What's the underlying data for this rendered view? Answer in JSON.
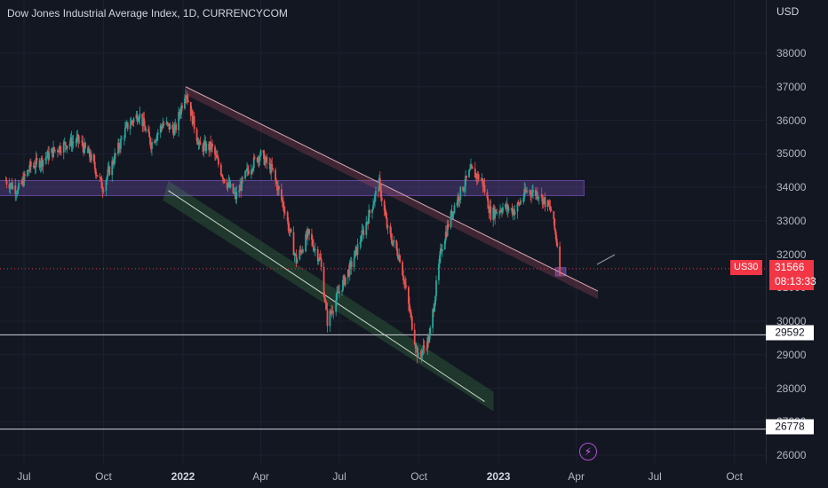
{
  "header": {
    "title": "Dow Jones Industrial Average Index, 1D, CURRENCYCOM",
    "currency": "USD"
  },
  "price_tag": {
    "ticker": "US30",
    "price": "31566",
    "countdown": "08:13:33"
  },
  "hlines": [
    {
      "value": 29592,
      "label": "29592"
    },
    {
      "value": 26778,
      "label": "26778"
    }
  ],
  "icons": {
    "flash": "lightning-bolt-icon"
  },
  "colors": {
    "background": "#131722",
    "up": "#26a69a",
    "down": "#ef5350",
    "zone": "#7e57c2",
    "channel_upper": "#c2546a",
    "channel_lower": "#4caf50",
    "last_price": "#f23645"
  },
  "chart_data": {
    "type": "candlestick",
    "title": "Dow Jones Industrial Average Index, 1D, CURRENCYCOM",
    "ylim": [
      25500,
      39000
    ],
    "y_ticks": [
      "26000",
      "27000",
      "28000",
      "29000",
      "30000",
      "31000",
      "32000",
      "33000",
      "34000",
      "35000",
      "36000",
      "37000",
      "38000"
    ],
    "x_ticks": [
      {
        "label": "Jul",
        "date": "2021-07-01",
        "bold": false
      },
      {
        "label": "Oct",
        "date": "2021-10-01",
        "bold": false
      },
      {
        "label": "2022",
        "date": "2022-01-01",
        "bold": true
      },
      {
        "label": "Apr",
        "date": "2022-04-01",
        "bold": false
      },
      {
        "label": "Jul",
        "date": "2022-07-01",
        "bold": false
      },
      {
        "label": "Oct",
        "date": "2022-10-01",
        "bold": false
      },
      {
        "label": "2023",
        "date": "2023-01-01",
        "bold": true
      },
      {
        "label": "Apr",
        "date": "2023-04-01",
        "bold": false
      },
      {
        "label": "Jul",
        "date": "2023-07-01",
        "bold": false
      },
      {
        "label": "Oct",
        "date": "2023-10-01",
        "bold": false
      }
    ],
    "series": [
      {
        "values": [
          [
            "2021-06-10",
            34200
          ],
          [
            "2021-06-24",
            33900
          ],
          [
            "2021-07-08",
            34600
          ],
          [
            "2021-07-22",
            34800
          ],
          [
            "2021-08-05",
            35100
          ],
          [
            "2021-08-19",
            35300
          ],
          [
            "2021-09-02",
            35400
          ],
          [
            "2021-09-16",
            34900
          ],
          [
            "2021-09-30",
            34000
          ],
          [
            "2021-10-14",
            34900
          ],
          [
            "2021-10-28",
            35800
          ],
          [
            "2021-11-11",
            36200
          ],
          [
            "2021-11-25",
            35300
          ],
          [
            "2021-12-09",
            35900
          ],
          [
            "2021-12-23",
            35700
          ],
          [
            "2022-01-04",
            36900
          ],
          [
            "2022-01-20",
            35200
          ],
          [
            "2022-02-03",
            35200
          ],
          [
            "2022-02-17",
            34300
          ],
          [
            "2022-03-03",
            33700
          ],
          [
            "2022-03-17",
            34500
          ],
          [
            "2022-03-31",
            35000
          ],
          [
            "2022-04-14",
            34500
          ],
          [
            "2022-04-28",
            33400
          ],
          [
            "2022-05-12",
            31800
          ],
          [
            "2022-05-26",
            32600
          ],
          [
            "2022-06-09",
            31800
          ],
          [
            "2022-06-17",
            30000
          ],
          [
            "2022-07-01",
            30900
          ],
          [
            "2022-07-15",
            31700
          ],
          [
            "2022-07-29",
            32700
          ],
          [
            "2022-08-16",
            34100
          ],
          [
            "2022-08-26",
            32700
          ],
          [
            "2022-09-09",
            31900
          ],
          [
            "2022-09-23",
            29900
          ],
          [
            "2022-09-30",
            28900
          ],
          [
            "2022-10-13",
            29500
          ],
          [
            "2022-10-27",
            32200
          ],
          [
            "2022-11-10",
            33400
          ],
          [
            "2022-11-30",
            34500
          ],
          [
            "2022-12-13",
            34200
          ],
          [
            "2022-12-23",
            33200
          ],
          [
            "2023-01-06",
            33400
          ],
          [
            "2023-01-20",
            33300
          ],
          [
            "2023-02-03",
            33900
          ],
          [
            "2023-02-17",
            33800
          ],
          [
            "2023-03-03",
            33300
          ],
          [
            "2023-03-10",
            32300
          ],
          [
            "2023-03-13",
            31566
          ]
        ]
      }
    ],
    "zones": [
      {
        "from": "2021-06-01",
        "to": "2023-04-10",
        "low": 33750,
        "high": 34200
      },
      {
        "from": "2023-03-08",
        "to": "2023-03-20",
        "low": 31350,
        "high": 31600
      }
    ],
    "trendlines": [
      {
        "name": "",
        "from": [
          "2022-01-04",
          37000
        ],
        "to": [
          "2023-04-26",
          30900
        ]
      },
      {
        "name": "",
        "from": [
          "2021-12-15",
          33900
        ],
        "to": [
          "2022-12-16",
          27600
        ]
      }
    ],
    "horizontal_levels": [
      29592,
      26778
    ],
    "last_price": 31566
  }
}
